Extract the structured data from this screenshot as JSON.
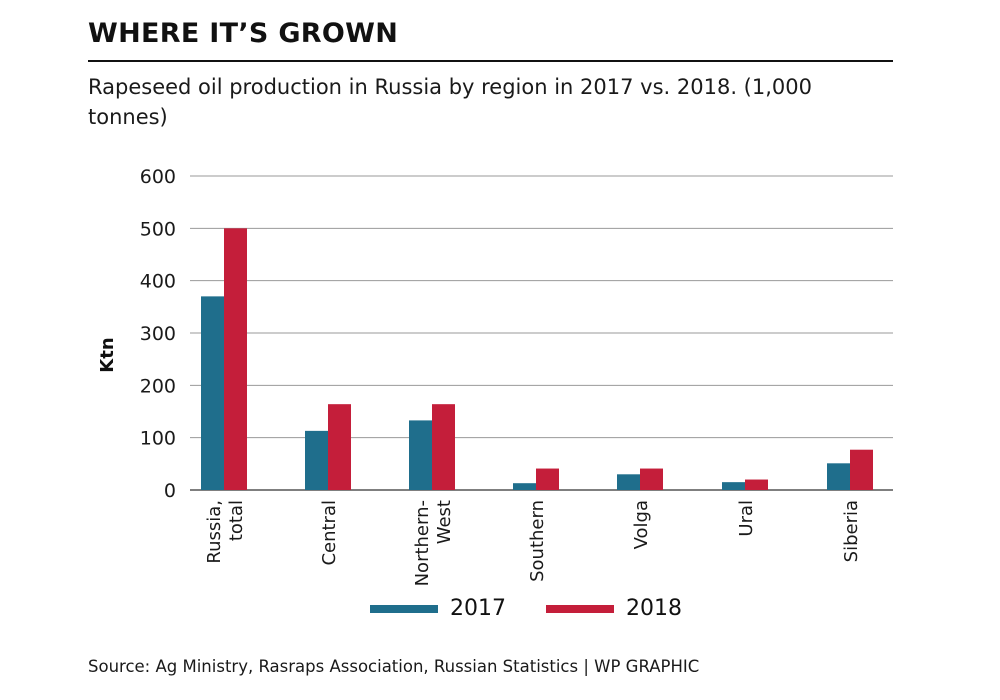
{
  "header": {
    "headline": "WHERE IT’S GROWN",
    "subtitle": "Rapeseed oil production in Russia by region in 2017 vs. 2018. (1,000 tonnes)"
  },
  "footer": {
    "source": "Source: Ag Ministry, Rasraps Association, Russian Statistics  |  WP GRAPHIC"
  },
  "colors": {
    "series_2017": "#1f6e8c",
    "series_2018": "#c41e3a",
    "grid": "#9a9a9a",
    "text": "#1a1a1a"
  },
  "chart_data": {
    "type": "bar",
    "title": "WHERE IT’S GROWN",
    "subtitle": "Rapeseed oil production in Russia by region in 2017 vs. 2018. (1,000 tonnes)",
    "xlabel": "",
    "ylabel": "Ktn",
    "ylim": [
      0,
      600
    ],
    "yticks": [
      0,
      100,
      200,
      300,
      400,
      500,
      600
    ],
    "grid": true,
    "legend_position": "bottom",
    "categories": [
      "Russia, total",
      "Central",
      "Northern-West",
      "Southern",
      "Volga",
      "Ural",
      "Siberia"
    ],
    "category_label_lines": [
      [
        "Russia,",
        "total"
      ],
      [
        "Central"
      ],
      [
        "Northern-",
        "West"
      ],
      [
        "Southern"
      ],
      [
        "Volga"
      ],
      [
        "Ural"
      ],
      [
        "Siberia"
      ]
    ],
    "series": [
      {
        "name": "2017",
        "values": [
          370,
          113,
          133,
          13,
          30,
          15,
          51
        ]
      },
      {
        "name": "2018",
        "values": [
          500,
          164,
          164,
          41,
          41,
          20,
          77
        ]
      }
    ]
  }
}
